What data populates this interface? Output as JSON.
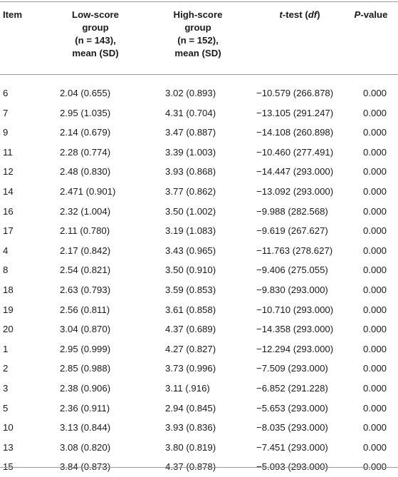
{
  "header": {
    "item": "Item",
    "low_lines": [
      "Low-score",
      "group",
      "(n = 143),",
      "mean (SD)"
    ],
    "high_lines": [
      "High-score",
      "group",
      "(n = 152),",
      "mean (SD)"
    ],
    "ttest_t": "t",
    "ttest_mid": "-test (",
    "ttest_df": "df",
    "ttest_end": ")",
    "p_P": "P",
    "p_rest": "-value"
  },
  "rows": [
    {
      "item": "6",
      "low": "2.04 (0.655)",
      "high": "3.02 (0.893)",
      "t": "−10.579 (266.878)",
      "p": "0.000"
    },
    {
      "item": "7",
      "low": "2.95 (1.035)",
      "high": "4.31 (0.704)",
      "t": "−13.105 (291.247)",
      "p": "0.000"
    },
    {
      "item": "9",
      "low": "2.14 (0.679)",
      "high": "3.47 (0.887)",
      "t": "−14.108 (260.898)",
      "p": "0.000"
    },
    {
      "item": "11",
      "low": "2.28 (0.774)",
      "high": "3.39 (1.003)",
      "t": "−10.460 (277.491)",
      "p": "0.000"
    },
    {
      "item": "12",
      "low": "2.48 (0.830)",
      "high": "3.93 (0.868)",
      "t": "−14.447 (293.000)",
      "p": "0.000"
    },
    {
      "item": "14",
      "low": "2.471 (0.901)",
      "high": "3.77 (0.862)",
      "t": "−13.092 (293.000)",
      "p": "0.000"
    },
    {
      "item": "16",
      "low": "2.32 (1.004)",
      "high": "3.50 (1.002)",
      "t": "−9.988 (282.568)",
      "p": "0.000"
    },
    {
      "item": "17",
      "low": "2.11 (0.780)",
      "high": "3.19 (1.083)",
      "t": "−9.619 (267.627)",
      "p": "0.000"
    },
    {
      "item": "4",
      "low": "2.17 (0.842)",
      "high": "3.43 (0.965)",
      "t": "−11.763 (278.627)",
      "p": "0.000"
    },
    {
      "item": "8",
      "low": "2.54 (0.821)",
      "high": "3.50 (0.910)",
      "t": "−9.406 (275.055)",
      "p": "0.000"
    },
    {
      "item": "18",
      "low": "2.63 (0.793)",
      "high": "3.59 (0.853)",
      "t": "−9.830 (293.000)",
      "p": "0.000"
    },
    {
      "item": "19",
      "low": "2.56 (0.811)",
      "high": "3.61 (0.858)",
      "t": "−10.710 (293.000)",
      "p": "0.000"
    },
    {
      "item": "20",
      "low": "3.04 (0.870)",
      "high": "4.37 (0.689)",
      "t": "−14.358 (293.000)",
      "p": "0.000"
    },
    {
      "item": "1",
      "low": "2.95 (0.999)",
      "high": "4.27 (0.827)",
      "t": "−12.294 (293.000)",
      "p": "0.000"
    },
    {
      "item": "2",
      "low": "2.85 (0.988)",
      "high": "3.73 (0.996)",
      "t": "−7.509 (293.000)",
      "p": "0.000"
    },
    {
      "item": "3",
      "low": "2.38 (0.906)",
      "high": "3.11 (.916)",
      "t": "−6.852 (291.228)",
      "p": "0.000"
    },
    {
      "item": "5",
      "low": "2.36 (0.911)",
      "high": "2.94 (0.845)",
      "t": "−5.653 (293.000)",
      "p": "0.000"
    },
    {
      "item": "10",
      "low": "3.13 (0.844)",
      "high": "3.93 (0.836)",
      "t": "−8.035 (293.000)",
      "p": "0.000"
    },
    {
      "item": "13",
      "low": "3.08 (0.820)",
      "high": "3.80 (0.819)",
      "t": "−7.451 (293.000)",
      "p": "0.000"
    },
    {
      "item": "15",
      "low": "3.84 (0.873)",
      "high": "4.37 (0.878)",
      "t": "−5.093 (293.000)",
      "p": "0.000"
    }
  ]
}
